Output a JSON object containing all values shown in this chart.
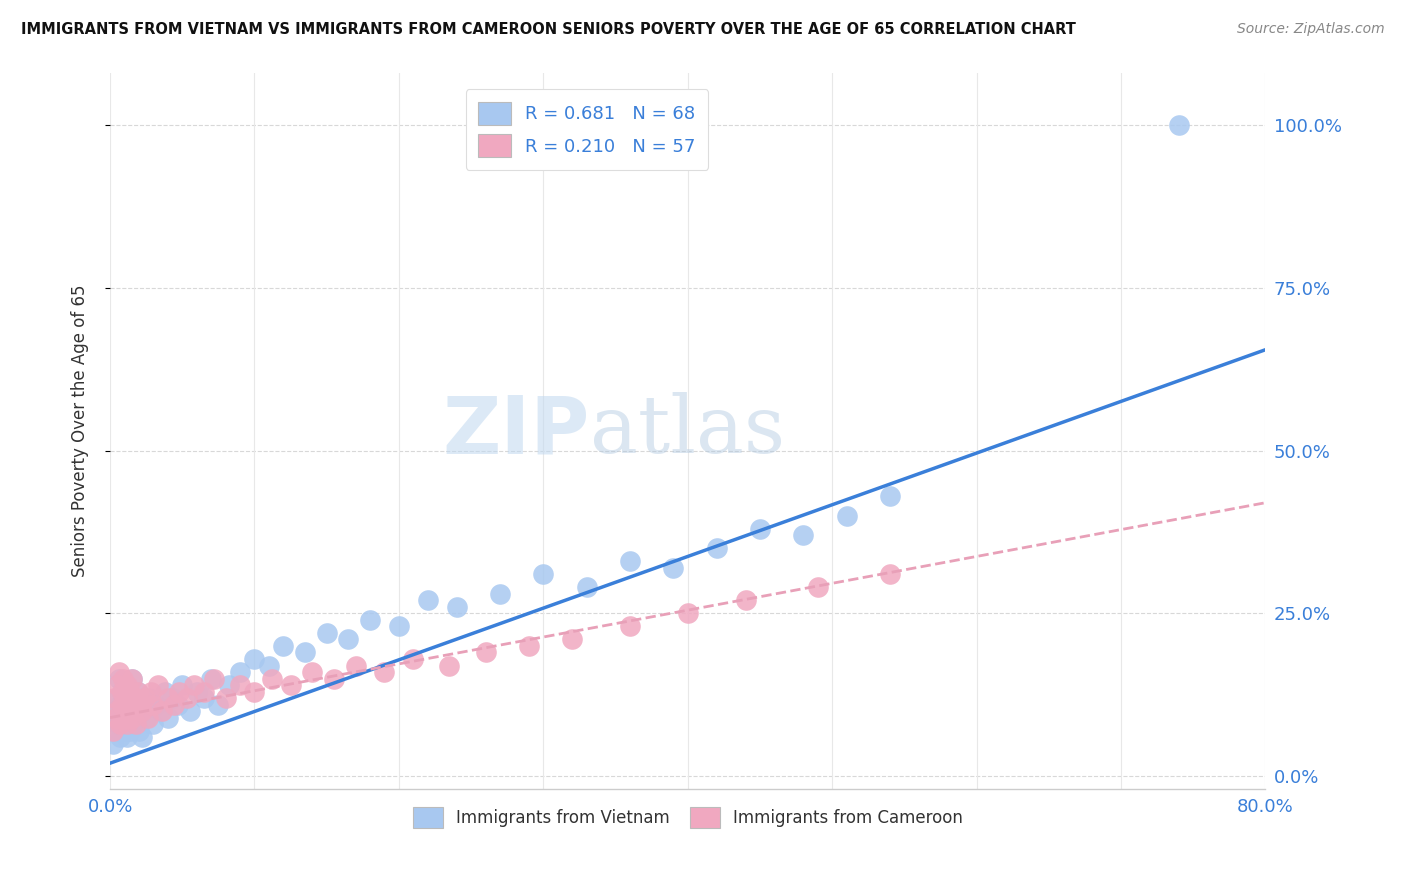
{
  "title": "IMMIGRANTS FROM VIETNAM VS IMMIGRANTS FROM CAMEROON SENIORS POVERTY OVER THE AGE OF 65 CORRELATION CHART",
  "source": "Source: ZipAtlas.com",
  "ylabel": "Seniors Poverty Over the Age of 65",
  "xlim": [
    0.0,
    0.8
  ],
  "ylim": [
    -0.02,
    1.08
  ],
  "ytick_labels": [
    "0.0%",
    "25.0%",
    "50.0%",
    "75.0%",
    "100.0%"
  ],
  "ytick_vals": [
    0.0,
    0.25,
    0.5,
    0.75,
    1.0
  ],
  "xtick_vals": [
    0.0,
    0.1,
    0.2,
    0.3,
    0.4,
    0.5,
    0.6,
    0.7,
    0.8
  ],
  "legend1_label": "R = 0.681   N = 68",
  "legend2_label": "R = 0.210   N = 57",
  "legend_bottom_label1": "Immigrants from Vietnam",
  "legend_bottom_label2": "Immigrants from Cameroon",
  "vietnam_color": "#a8c8f0",
  "cameroon_color": "#f0a8c0",
  "vietnam_line_color": "#3a7fd9",
  "cameroon_line_color": "#e8a0b8",
  "watermark_zip": "ZIP",
  "watermark_atlas": "atlas",
  "vietnam_scatter_x": [
    0.002,
    0.003,
    0.004,
    0.005,
    0.005,
    0.006,
    0.007,
    0.007,
    0.008,
    0.008,
    0.009,
    0.01,
    0.01,
    0.011,
    0.011,
    0.012,
    0.012,
    0.013,
    0.013,
    0.014,
    0.015,
    0.015,
    0.016,
    0.017,
    0.018,
    0.019,
    0.02,
    0.021,
    0.022,
    0.023,
    0.025,
    0.027,
    0.03,
    0.032,
    0.035,
    0.038,
    0.04,
    0.043,
    0.047,
    0.05,
    0.055,
    0.06,
    0.065,
    0.07,
    0.075,
    0.082,
    0.09,
    0.1,
    0.11,
    0.12,
    0.135,
    0.15,
    0.165,
    0.18,
    0.2,
    0.22,
    0.24,
    0.27,
    0.3,
    0.33,
    0.36,
    0.39,
    0.42,
    0.45,
    0.48,
    0.51,
    0.54,
    0.74
  ],
  "vietnam_scatter_y": [
    0.05,
    0.1,
    0.07,
    0.12,
    0.08,
    0.15,
    0.06,
    0.11,
    0.09,
    0.13,
    0.07,
    0.1,
    0.14,
    0.08,
    0.12,
    0.06,
    0.11,
    0.09,
    0.13,
    0.07,
    0.1,
    0.15,
    0.08,
    0.12,
    0.09,
    0.13,
    0.07,
    0.11,
    0.06,
    0.1,
    0.09,
    0.12,
    0.08,
    0.11,
    0.1,
    0.13,
    0.09,
    0.12,
    0.11,
    0.14,
    0.1,
    0.13,
    0.12,
    0.15,
    0.11,
    0.14,
    0.16,
    0.18,
    0.17,
    0.2,
    0.19,
    0.22,
    0.21,
    0.24,
    0.23,
    0.27,
    0.26,
    0.28,
    0.31,
    0.29,
    0.33,
    0.32,
    0.35,
    0.38,
    0.37,
    0.4,
    0.43,
    1.0
  ],
  "cameroon_scatter_x": [
    0.002,
    0.003,
    0.004,
    0.005,
    0.005,
    0.006,
    0.007,
    0.008,
    0.008,
    0.009,
    0.01,
    0.01,
    0.011,
    0.012,
    0.012,
    0.013,
    0.014,
    0.015,
    0.015,
    0.016,
    0.017,
    0.018,
    0.019,
    0.02,
    0.022,
    0.024,
    0.026,
    0.028,
    0.03,
    0.033,
    0.036,
    0.04,
    0.044,
    0.048,
    0.053,
    0.058,
    0.065,
    0.072,
    0.08,
    0.09,
    0.1,
    0.112,
    0.125,
    0.14,
    0.155,
    0.17,
    0.19,
    0.21,
    0.235,
    0.26,
    0.29,
    0.32,
    0.36,
    0.4,
    0.44,
    0.49,
    0.54
  ],
  "cameroon_scatter_y": [
    0.07,
    0.12,
    0.09,
    0.14,
    0.1,
    0.16,
    0.08,
    0.13,
    0.11,
    0.15,
    0.09,
    0.12,
    0.1,
    0.14,
    0.08,
    0.11,
    0.13,
    0.09,
    0.15,
    0.1,
    0.12,
    0.08,
    0.13,
    0.11,
    0.1,
    0.12,
    0.09,
    0.13,
    0.11,
    0.14,
    0.1,
    0.12,
    0.11,
    0.13,
    0.12,
    0.14,
    0.13,
    0.15,
    0.12,
    0.14,
    0.13,
    0.15,
    0.14,
    0.16,
    0.15,
    0.17,
    0.16,
    0.18,
    0.17,
    0.19,
    0.2,
    0.21,
    0.23,
    0.25,
    0.27,
    0.29,
    0.31
  ],
  "vietnam_line_x": [
    0.0,
    0.8
  ],
  "vietnam_line_y": [
    0.02,
    0.655
  ],
  "cameroon_line_x": [
    0.0,
    0.8
  ],
  "cameroon_line_y": [
    0.09,
    0.42
  ]
}
